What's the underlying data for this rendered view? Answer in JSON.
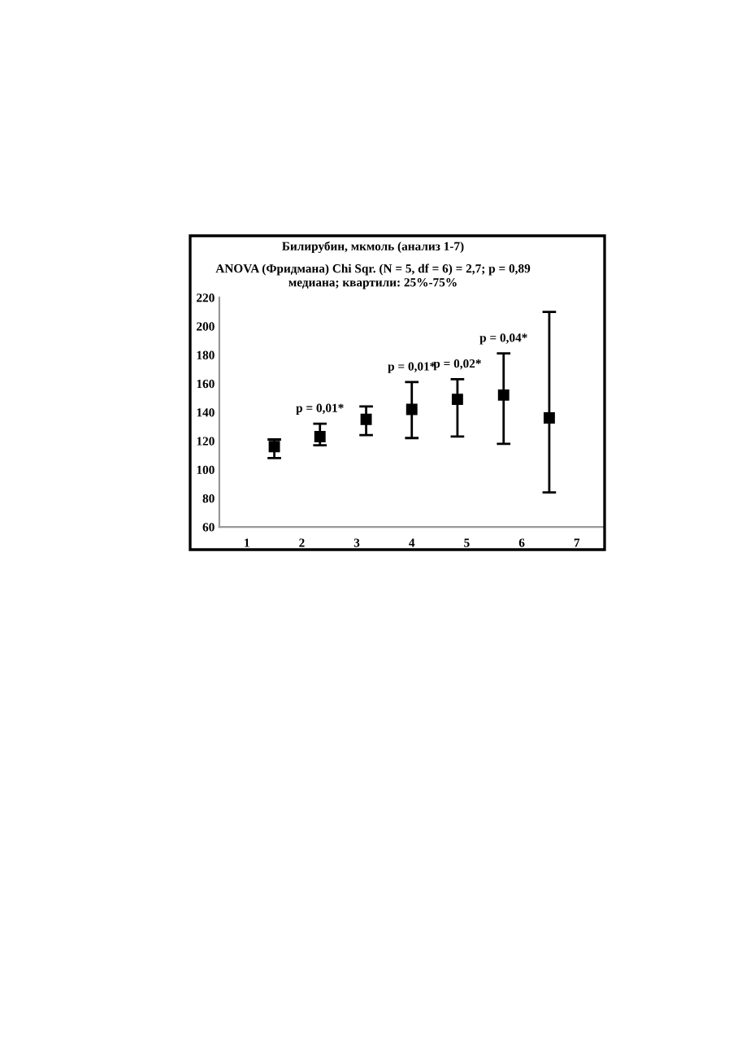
{
  "chart_data": {
    "type": "scatter",
    "title": "Билирубин, мкмоль (анализ 1-7)",
    "subtitle": "ANOVA (Фридмана) Chi Sqr. (N = 5, df = 6) = 2,7; p = 0,89\nмедиана; квартили: 25%-75%",
    "x": [
      1.5,
      2.33,
      3.17,
      4.0,
      4.83,
      5.67,
      6.5
    ],
    "values": [
      116,
      123,
      135,
      142,
      149,
      152,
      136
    ],
    "errors": [
      [
        108,
        121
      ],
      [
        117,
        132
      ],
      [
        124,
        144
      ],
      [
        122,
        161
      ],
      [
        123,
        163
      ],
      [
        118,
        181
      ],
      [
        84,
        210
      ]
    ],
    "color": "#000000",
    "marker": "square",
    "xlim": [
      0.5,
      7.5
    ],
    "xticks": [
      1,
      2,
      3,
      4,
      5,
      6,
      7
    ],
    "ylim": [
      60,
      220
    ],
    "yticks": [
      60,
      80,
      100,
      120,
      140,
      160,
      180,
      200,
      220
    ],
    "grid": false,
    "annotations": [
      {
        "text": "p = 0,01*",
        "x": 2.33,
        "y": 132
      },
      {
        "text": "p = 0,01*",
        "x": 4.0,
        "y": 161
      },
      {
        "text": "p = 0,02*",
        "x": 4.83,
        "y": 163
      },
      {
        "text": "p = 0,04*",
        "x": 5.67,
        "y": 181
      }
    ]
  }
}
